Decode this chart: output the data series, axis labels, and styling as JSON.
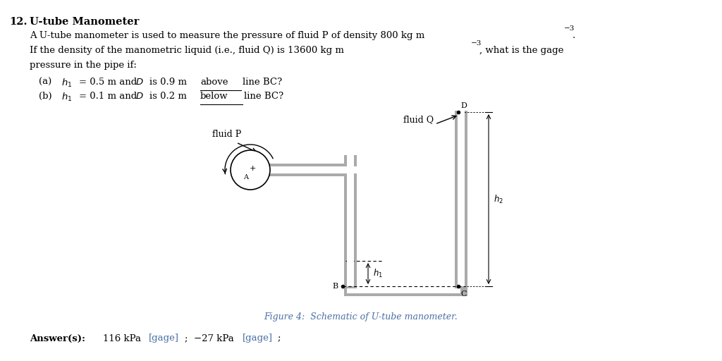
{
  "title_num": "12.",
  "title_text": "U-tube Manometer",
  "line1": "A U-tube manometer is used to measure the pressure of fluid P of density 800 kg m",
  "line2": "If the density of the manometric liquid (i.e., fluid Q) is 13600 kg m",
  "line2c": ", what is the gage",
  "line3": "pressure in the pipe if:",
  "fig_caption": "Figure 4:  Schematic of U-tube manometer.",
  "answer_text": "Answer(s):",
  "bg_color": "#ffffff",
  "text_color": "#000000",
  "blue_color": "#4a6fa5",
  "tube_color": "#aaaaaa"
}
